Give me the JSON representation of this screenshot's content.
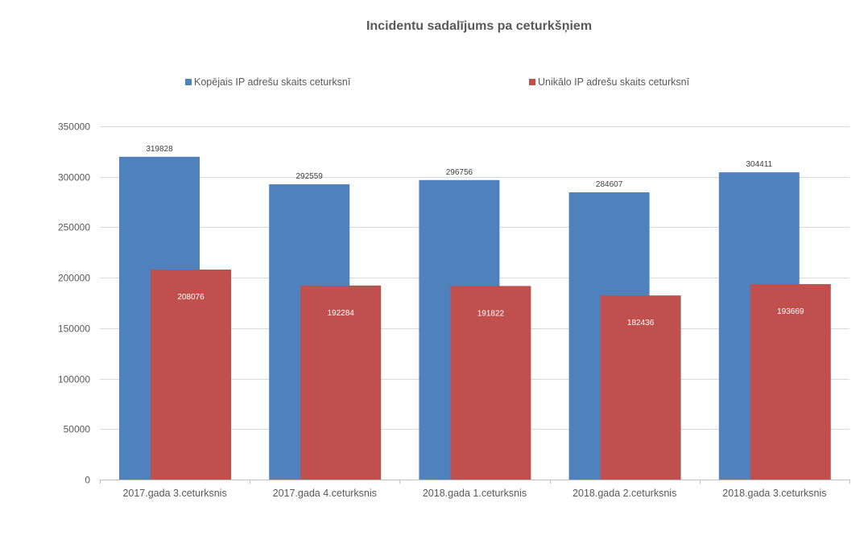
{
  "chart_data": {
    "type": "bar",
    "title": "Incidentu sadalījums pa ceturkšņiem",
    "categories": [
      "2017.gada  3.ceturksnis",
      "2017.gada  4.ceturksnis",
      "2018.gada  1.ceturksnis",
      "2018.gada  2.ceturksnis",
      "2018.gada  3.ceturksnis"
    ],
    "series": [
      {
        "name": "Kopējais IP adrešu skaits ceturksnī",
        "color": "#4F81BD",
        "values": [
          319828,
          292559,
          296756,
          284607,
          304411
        ]
      },
      {
        "name": "Unikālo IP adrešu skaits ceturksnī",
        "color": "#C0504D",
        "values": [
          208076,
          192284,
          191822,
          182436,
          193669
        ]
      }
    ],
    "ylim": [
      0,
      350000
    ],
    "yticks": [
      0,
      50000,
      100000,
      150000,
      200000,
      250000,
      300000,
      350000
    ],
    "grid": true,
    "legend_position": "top",
    "xlabel": "",
    "ylabel": ""
  }
}
